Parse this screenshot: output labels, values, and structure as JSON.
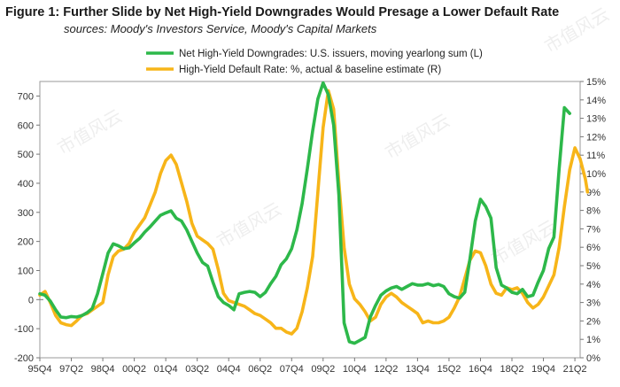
{
  "title": "Figure 1:  Further Slide by Net High-Yield Downgrades Would Presage a Lower Default Rate",
  "subtitle": "sources: Moody's Investors Service, Moody's Capital Markets",
  "watermark": "市值风云",
  "chart_data": {
    "type": "line",
    "x_ticks": [
      "95Q4",
      "97Q2",
      "98Q4",
      "00Q2",
      "01Q4",
      "03Q2",
      "04Q4",
      "06Q2",
      "07Q4",
      "09Q2",
      "10Q4",
      "12Q2",
      "13Q4",
      "15Q2",
      "16Q4",
      "18Q2",
      "19Q4",
      "21Q2"
    ],
    "x_range": [
      1995.75,
      2021.5
    ],
    "y_left": {
      "range": [
        -200,
        750
      ],
      "ticks": [
        -200,
        -100,
        0,
        100,
        200,
        300,
        400,
        500,
        600,
        700
      ]
    },
    "y_right": {
      "range": [
        0,
        15
      ],
      "ticks": [
        "0%",
        "1%",
        "2%",
        "3%",
        "4%",
        "5%",
        "6%",
        "7%",
        "8%",
        "9%",
        "10%",
        "11%",
        "12%",
        "13%",
        "14%",
        "15%"
      ]
    },
    "colors": {
      "downgrades": "#2db84a",
      "default_rate": "#f7b519"
    },
    "series": [
      {
        "name": "Net High-Yield Downgrades: U.S. issuers, moving yearlong sum (L)",
        "axis": "left",
        "points": [
          [
            1995.75,
            20
          ],
          [
            1996.0,
            15
          ],
          [
            1996.25,
            -5
          ],
          [
            1996.5,
            -35
          ],
          [
            1996.75,
            -60
          ],
          [
            1997.0,
            -62
          ],
          [
            1997.25,
            -58
          ],
          [
            1997.5,
            -60
          ],
          [
            1997.75,
            -55
          ],
          [
            1998.0,
            -45
          ],
          [
            1998.25,
            -30
          ],
          [
            1998.5,
            20
          ],
          [
            1998.75,
            90
          ],
          [
            1999.0,
            160
          ],
          [
            1999.25,
            192
          ],
          [
            1999.5,
            185
          ],
          [
            1999.75,
            175
          ],
          [
            2000.0,
            178
          ],
          [
            2000.25,
            195
          ],
          [
            2000.5,
            210
          ],
          [
            2000.75,
            232
          ],
          [
            2001.0,
            250
          ],
          [
            2001.25,
            270
          ],
          [
            2001.5,
            290
          ],
          [
            2001.75,
            298
          ],
          [
            2002.0,
            305
          ],
          [
            2002.25,
            280
          ],
          [
            2002.5,
            270
          ],
          [
            2002.75,
            240
          ],
          [
            2003.0,
            200
          ],
          [
            2003.25,
            160
          ],
          [
            2003.5,
            128
          ],
          [
            2003.75,
            115
          ],
          [
            2004.0,
            60
          ],
          [
            2004.25,
            10
          ],
          [
            2004.5,
            -10
          ],
          [
            2004.75,
            -20
          ],
          [
            2005.0,
            -35
          ],
          [
            2005.25,
            20
          ],
          [
            2005.5,
            25
          ],
          [
            2005.75,
            28
          ],
          [
            2006.0,
            25
          ],
          [
            2006.25,
            10
          ],
          [
            2006.5,
            25
          ],
          [
            2006.75,
            55
          ],
          [
            2007.0,
            80
          ],
          [
            2007.25,
            120
          ],
          [
            2007.5,
            140
          ],
          [
            2007.75,
            175
          ],
          [
            2008.0,
            240
          ],
          [
            2008.25,
            330
          ],
          [
            2008.5,
            450
          ],
          [
            2008.75,
            580
          ],
          [
            2009.0,
            690
          ],
          [
            2009.25,
            745
          ],
          [
            2009.5,
            705
          ],
          [
            2009.75,
            600
          ],
          [
            2010.0,
            360
          ],
          [
            2010.25,
            -80
          ],
          [
            2010.5,
            -145
          ],
          [
            2010.75,
            -150
          ],
          [
            2011.0,
            -140
          ],
          [
            2011.25,
            -130
          ],
          [
            2011.5,
            -60
          ],
          [
            2011.75,
            -20
          ],
          [
            2012.0,
            15
          ],
          [
            2012.25,
            30
          ],
          [
            2012.5,
            40
          ],
          [
            2012.75,
            45
          ],
          [
            2013.0,
            35
          ],
          [
            2013.25,
            45
          ],
          [
            2013.5,
            55
          ],
          [
            2013.75,
            50
          ],
          [
            2014.0,
            50
          ],
          [
            2014.25,
            55
          ],
          [
            2014.5,
            48
          ],
          [
            2014.75,
            52
          ],
          [
            2015.0,
            45
          ],
          [
            2015.25,
            20
          ],
          [
            2015.5,
            10
          ],
          [
            2015.75,
            5
          ],
          [
            2016.0,
            25
          ],
          [
            2016.25,
            140
          ],
          [
            2016.5,
            270
          ],
          [
            2016.75,
            345
          ],
          [
            2017.0,
            320
          ],
          [
            2017.25,
            280
          ],
          [
            2017.5,
            110
          ],
          [
            2017.75,
            50
          ],
          [
            2018.0,
            40
          ],
          [
            2018.25,
            25
          ],
          [
            2018.5,
            20
          ],
          [
            2018.75,
            35
          ],
          [
            2019.0,
            10
          ],
          [
            2019.25,
            15
          ],
          [
            2019.5,
            60
          ],
          [
            2019.75,
            100
          ],
          [
            2020.0,
            175
          ],
          [
            2020.25,
            215
          ],
          [
            2020.5,
            450
          ],
          [
            2020.75,
            660
          ],
          [
            2021.0,
            640
          ]
        ]
      },
      {
        "name": "High-Yield Default Rate: %, actual & baseline estimate (R)",
        "axis": "right",
        "points": [
          [
            1995.75,
            3.4
          ],
          [
            1996.0,
            3.6
          ],
          [
            1996.25,
            3.0
          ],
          [
            1996.5,
            2.3
          ],
          [
            1996.75,
            1.9
          ],
          [
            1997.0,
            1.8
          ],
          [
            1997.25,
            1.75
          ],
          [
            1997.5,
            2.0
          ],
          [
            1997.75,
            2.3
          ],
          [
            1998.0,
            2.4
          ],
          [
            1998.25,
            2.6
          ],
          [
            1998.5,
            2.8
          ],
          [
            1998.75,
            3.0
          ],
          [
            1999.0,
            4.5
          ],
          [
            1999.25,
            5.5
          ],
          [
            1999.5,
            5.8
          ],
          [
            1999.75,
            5.9
          ],
          [
            2000.0,
            6.2
          ],
          [
            2000.25,
            6.8
          ],
          [
            2000.5,
            7.2
          ],
          [
            2000.75,
            7.6
          ],
          [
            2001.0,
            8.3
          ],
          [
            2001.25,
            9.0
          ],
          [
            2001.5,
            10.0
          ],
          [
            2001.75,
            10.7
          ],
          [
            2002.0,
            11.0
          ],
          [
            2002.25,
            10.5
          ],
          [
            2002.5,
            9.5
          ],
          [
            2002.75,
            8.5
          ],
          [
            2003.0,
            7.3
          ],
          [
            2003.25,
            6.6
          ],
          [
            2003.5,
            6.4
          ],
          [
            2003.75,
            6.2
          ],
          [
            2004.0,
            5.9
          ],
          [
            2004.25,
            4.8
          ],
          [
            2004.5,
            3.5
          ],
          [
            2004.75,
            3.1
          ],
          [
            2005.0,
            3.0
          ],
          [
            2005.25,
            2.9
          ],
          [
            2005.5,
            2.8
          ],
          [
            2005.75,
            2.6
          ],
          [
            2006.0,
            2.4
          ],
          [
            2006.25,
            2.3
          ],
          [
            2006.5,
            2.1
          ],
          [
            2006.75,
            1.9
          ],
          [
            2007.0,
            1.6
          ],
          [
            2007.25,
            1.6
          ],
          [
            2007.5,
            1.4
          ],
          [
            2007.75,
            1.3
          ],
          [
            2008.0,
            1.6
          ],
          [
            2008.25,
            2.5
          ],
          [
            2008.5,
            3.8
          ],
          [
            2008.75,
            5.5
          ],
          [
            2009.0,
            9.0
          ],
          [
            2009.25,
            12.5
          ],
          [
            2009.5,
            14.5
          ],
          [
            2009.75,
            13.5
          ],
          [
            2010.0,
            9.5
          ],
          [
            2010.25,
            6.0
          ],
          [
            2010.5,
            4.0
          ],
          [
            2010.75,
            3.2
          ],
          [
            2011.0,
            2.9
          ],
          [
            2011.25,
            2.5
          ],
          [
            2011.5,
            2.0
          ],
          [
            2011.75,
            2.2
          ],
          [
            2012.0,
            2.9
          ],
          [
            2012.25,
            3.3
          ],
          [
            2012.5,
            3.5
          ],
          [
            2012.75,
            3.3
          ],
          [
            2013.0,
            3.0
          ],
          [
            2013.25,
            2.8
          ],
          [
            2013.5,
            2.6
          ],
          [
            2013.75,
            2.4
          ],
          [
            2014.0,
            1.9
          ],
          [
            2014.25,
            2.0
          ],
          [
            2014.5,
            1.9
          ],
          [
            2014.75,
            1.9
          ],
          [
            2015.0,
            2.0
          ],
          [
            2015.25,
            2.2
          ],
          [
            2015.5,
            2.7
          ],
          [
            2015.75,
            3.3
          ],
          [
            2016.0,
            4.3
          ],
          [
            2016.25,
            5.3
          ],
          [
            2016.5,
            5.8
          ],
          [
            2016.75,
            5.7
          ],
          [
            2017.0,
            5.0
          ],
          [
            2017.25,
            4.0
          ],
          [
            2017.5,
            3.5
          ],
          [
            2017.75,
            3.4
          ],
          [
            2018.0,
            3.8
          ],
          [
            2018.25,
            3.7
          ],
          [
            2018.5,
            3.8
          ],
          [
            2018.75,
            3.5
          ],
          [
            2019.0,
            3.0
          ],
          [
            2019.25,
            2.7
          ],
          [
            2019.5,
            2.9
          ],
          [
            2019.75,
            3.3
          ],
          [
            2020.0,
            3.9
          ],
          [
            2020.25,
            4.5
          ],
          [
            2020.5,
            6.0
          ],
          [
            2020.75,
            8.2
          ],
          [
            2021.0,
            10.2
          ],
          [
            2021.25,
            11.4
          ],
          [
            2021.5,
            10.8
          ],
          [
            2021.75,
            9.7
          ],
          [
            2021.85,
            9.0
          ]
        ]
      }
    ]
  }
}
